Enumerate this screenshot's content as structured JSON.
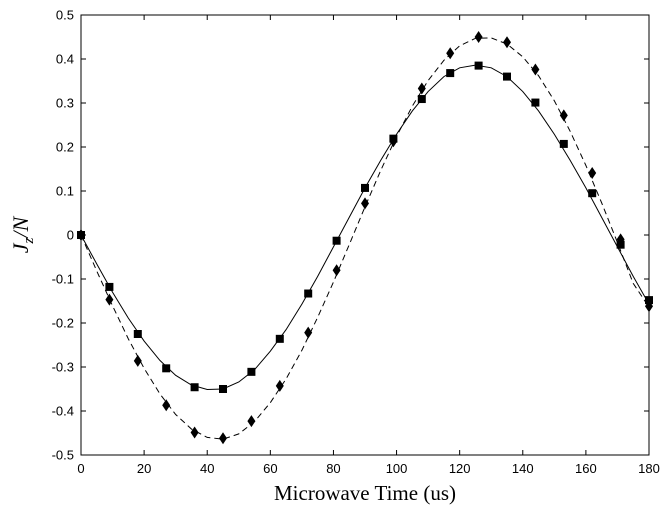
{
  "chart_data": {
    "type": "line",
    "xlabel": "Microwave Time (us)",
    "ylabel": {
      "main": "J",
      "sub": "z",
      "rest": "/N"
    },
    "xlim": [
      0,
      180
    ],
    "ylim": [
      -0.5,
      0.5
    ],
    "xticks": [
      0,
      20,
      40,
      60,
      80,
      100,
      120,
      140,
      160,
      180
    ],
    "yticks": [
      -0.5,
      -0.4,
      -0.3,
      -0.2,
      -0.1,
      0,
      0.1,
      0.2,
      0.3,
      0.4,
      0.5
    ],
    "xtick_labels": [
      "0",
      "20",
      "40",
      "60",
      "80",
      "100",
      "120",
      "140",
      "160",
      "180"
    ],
    "ytick_labels": [
      "-0.5",
      "-0.4",
      "-0.3",
      "-0.2",
      "-0.1",
      "0",
      "0.1",
      "0.2",
      "0.3",
      "0.4",
      "0.5"
    ],
    "grid": false,
    "series": [
      {
        "marker": "square",
        "line_style": "solid",
        "color": "#000000",
        "points": [
          {
            "x": 0,
            "y": 0.0
          },
          {
            "x": 9,
            "y": -0.118
          },
          {
            "x": 18,
            "y": -0.225
          },
          {
            "x": 27,
            "y": -0.303
          },
          {
            "x": 36,
            "y": -0.346
          },
          {
            "x": 45,
            "y": -0.35
          },
          {
            "x": 54,
            "y": -0.311
          },
          {
            "x": 63,
            "y": -0.236
          },
          {
            "x": 72,
            "y": -0.133
          },
          {
            "x": 81,
            "y": -0.013
          },
          {
            "x": 90,
            "y": 0.107
          },
          {
            "x": 99,
            "y": 0.219
          },
          {
            "x": 108,
            "y": 0.309
          },
          {
            "x": 117,
            "y": 0.368
          },
          {
            "x": 126,
            "y": 0.385
          },
          {
            "x": 135,
            "y": 0.36
          },
          {
            "x": 144,
            "y": 0.301
          },
          {
            "x": 153,
            "y": 0.207
          },
          {
            "x": 162,
            "y": 0.095
          },
          {
            "x": 171,
            "y": -0.022
          },
          {
            "x": 180,
            "y": -0.148
          }
        ],
        "curve": [
          {
            "x": 0,
            "y": 0.0
          },
          {
            "x": 5,
            "y": -0.066
          },
          {
            "x": 10,
            "y": -0.13
          },
          {
            "x": 15,
            "y": -0.189
          },
          {
            "x": 20,
            "y": -0.241
          },
          {
            "x": 25,
            "y": -0.285
          },
          {
            "x": 30,
            "y": -0.319
          },
          {
            "x": 35,
            "y": -0.341
          },
          {
            "x": 40,
            "y": -0.351
          },
          {
            "x": 45,
            "y": -0.35
          },
          {
            "x": 50,
            "y": -0.334
          },
          {
            "x": 55,
            "y": -0.306
          },
          {
            "x": 60,
            "y": -0.264
          },
          {
            "x": 65,
            "y": -0.215
          },
          {
            "x": 70,
            "y": -0.157
          },
          {
            "x": 75,
            "y": -0.094
          },
          {
            "x": 80,
            "y": -0.027
          },
          {
            "x": 85,
            "y": 0.04
          },
          {
            "x": 90,
            "y": 0.107
          },
          {
            "x": 95,
            "y": 0.17
          },
          {
            "x": 100,
            "y": 0.229
          },
          {
            "x": 105,
            "y": 0.282
          },
          {
            "x": 110,
            "y": 0.326
          },
          {
            "x": 115,
            "y": 0.36
          },
          {
            "x": 120,
            "y": 0.38
          },
          {
            "x": 125,
            "y": 0.386
          },
          {
            "x": 130,
            "y": 0.38
          },
          {
            "x": 135,
            "y": 0.36
          },
          {
            "x": 140,
            "y": 0.326
          },
          {
            "x": 145,
            "y": 0.282
          },
          {
            "x": 150,
            "y": 0.229
          },
          {
            "x": 155,
            "y": 0.17
          },
          {
            "x": 160,
            "y": 0.107
          },
          {
            "x": 165,
            "y": 0.04
          },
          {
            "x": 170,
            "y": -0.027
          },
          {
            "x": 175,
            "y": -0.094
          },
          {
            "x": 180,
            "y": -0.157
          }
        ]
      },
      {
        "marker": "diamond",
        "line_style": "dashed",
        "color": "#000000",
        "points": [
          {
            "x": 0,
            "y": 0.0
          },
          {
            "x": 9,
            "y": -0.147
          },
          {
            "x": 18,
            "y": -0.286
          },
          {
            "x": 27,
            "y": -0.387
          },
          {
            "x": 36,
            "y": -0.449
          },
          {
            "x": 45,
            "y": -0.462
          },
          {
            "x": 54,
            "y": -0.423
          },
          {
            "x": 63,
            "y": -0.343
          },
          {
            "x": 72,
            "y": -0.222
          },
          {
            "x": 81,
            "y": -0.08
          },
          {
            "x": 90,
            "y": 0.072
          },
          {
            "x": 99,
            "y": 0.213
          },
          {
            "x": 108,
            "y": 0.333
          },
          {
            "x": 117,
            "y": 0.413
          },
          {
            "x": 126,
            "y": 0.45
          },
          {
            "x": 135,
            "y": 0.438
          },
          {
            "x": 144,
            "y": 0.376
          },
          {
            "x": 153,
            "y": 0.272
          },
          {
            "x": 162,
            "y": 0.141
          },
          {
            "x": 171,
            "y": -0.01
          },
          {
            "x": 180,
            "y": -0.162
          }
        ],
        "curve": [
          {
            "x": 0,
            "y": 0.0
          },
          {
            "x": 5,
            "y": -0.082
          },
          {
            "x": 10,
            "y": -0.161
          },
          {
            "x": 15,
            "y": -0.236
          },
          {
            "x": 20,
            "y": -0.303
          },
          {
            "x": 25,
            "y": -0.361
          },
          {
            "x": 30,
            "y": -0.408
          },
          {
            "x": 35,
            "y": -0.441
          },
          {
            "x": 40,
            "y": -0.46
          },
          {
            "x": 45,
            "y": -0.464
          },
          {
            "x": 50,
            "y": -0.452
          },
          {
            "x": 55,
            "y": -0.424
          },
          {
            "x": 60,
            "y": -0.381
          },
          {
            "x": 65,
            "y": -0.327
          },
          {
            "x": 70,
            "y": -0.262
          },
          {
            "x": 75,
            "y": -0.187
          },
          {
            "x": 80,
            "y": -0.107
          },
          {
            "x": 85,
            "y": -0.022
          },
          {
            "x": 90,
            "y": 0.064
          },
          {
            "x": 95,
            "y": 0.147
          },
          {
            "x": 100,
            "y": 0.224
          },
          {
            "x": 105,
            "y": 0.293
          },
          {
            "x": 110,
            "y": 0.351
          },
          {
            "x": 115,
            "y": 0.397
          },
          {
            "x": 120,
            "y": 0.43
          },
          {
            "x": 125,
            "y": 0.447
          },
          {
            "x": 130,
            "y": 0.448
          },
          {
            "x": 135,
            "y": 0.434
          },
          {
            "x": 140,
            "y": 0.405
          },
          {
            "x": 145,
            "y": 0.362
          },
          {
            "x": 150,
            "y": 0.305
          },
          {
            "x": 155,
            "y": 0.236
          },
          {
            "x": 160,
            "y": 0.158
          },
          {
            "x": 165,
            "y": 0.073
          },
          {
            "x": 170,
            "y": -0.017
          },
          {
            "x": 175,
            "y": -0.11
          },
          {
            "x": 180,
            "y": -0.164
          }
        ]
      }
    ]
  }
}
